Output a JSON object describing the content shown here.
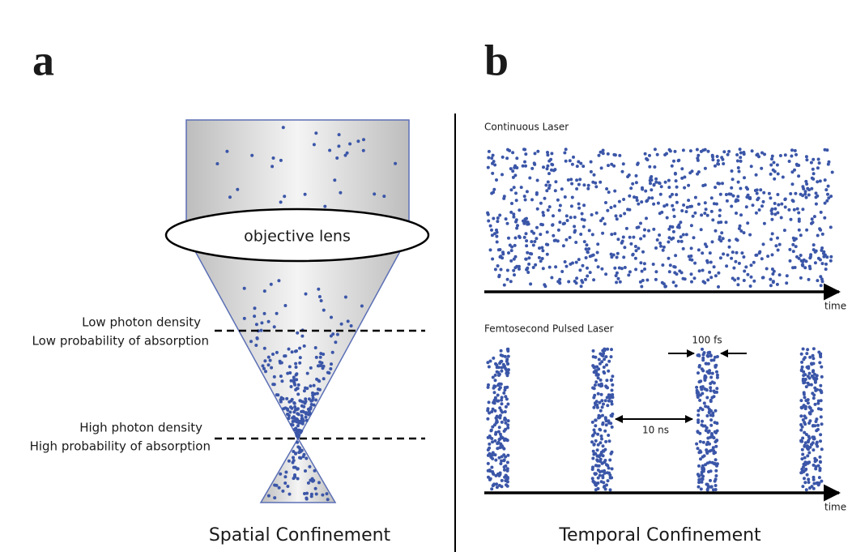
{
  "panel_a": {
    "label": "a",
    "lens": "objective lens",
    "low": [
      "Low photon density",
      "Low probability of absorption"
    ],
    "high": [
      "High photon density",
      "High probability of absorption"
    ],
    "caption": "Spatial Confinement"
  },
  "panel_b": {
    "label": "b",
    "continuous": {
      "title": "Continuous Laser",
      "axis": "time"
    },
    "pulsed": {
      "title": "Femtosecond Pulsed Laser",
      "axis": "time",
      "width": "100 fs",
      "spacing": "10 ns"
    },
    "caption": "Temporal Confinement"
  }
}
